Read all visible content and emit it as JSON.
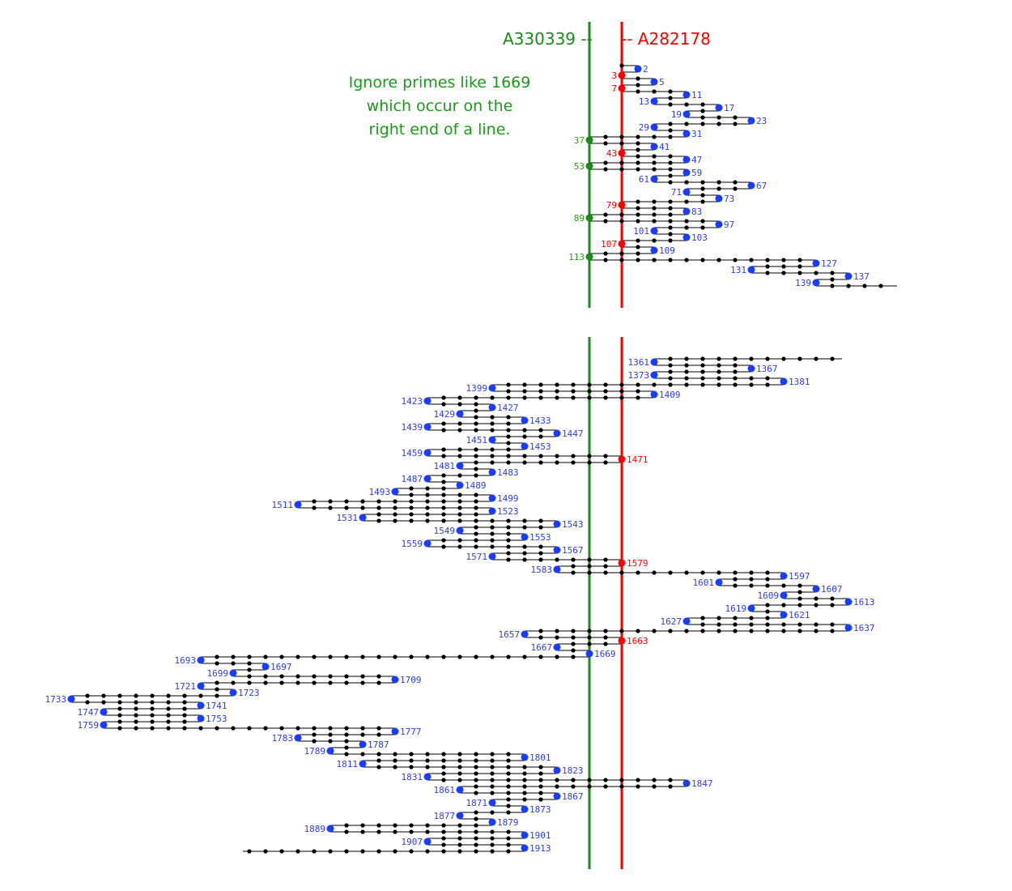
{
  "legend": {
    "green_sequence": "A330339 --",
    "red_sequence": "-- A282178"
  },
  "annotation": [
    "Ignore primes like 1669",
    "which occur on the",
    "right end of a line."
  ],
  "colors": {
    "green": "#1a8c1a",
    "red": "#ff0000",
    "blue": "#1a3cff",
    "label_blue": "#2d3fe0",
    "label_green": "#2e9a1e",
    "black": "#000000"
  },
  "sections": [
    {
      "primes": [
        2,
        3,
        5,
        7,
        11,
        13,
        17,
        19,
        23,
        29,
        31,
        37,
        41,
        43,
        47,
        53,
        59,
        61,
        67,
        71,
        73,
        79,
        83,
        89,
        97,
        101,
        103,
        107,
        109,
        113,
        127,
        131,
        137,
        139
      ]
    },
    {
      "primes": [
        1361,
        1367,
        1373,
        1381,
        1399,
        1409,
        1423,
        1427,
        1429,
        1433,
        1439,
        1447,
        1451,
        1453,
        1459,
        1471,
        1481,
        1483,
        1487,
        1489,
        1493,
        1499,
        1511,
        1523,
        1531,
        1543,
        1549,
        1553,
        1559,
        1567,
        1571,
        1579,
        1583,
        1597,
        1601,
        1607,
        1609,
        1613,
        1619,
        1621,
        1627,
        1637,
        1657,
        1663,
        1667,
        1669,
        1693,
        1697,
        1699,
        1709,
        1721,
        1723,
        1733,
        1741,
        1747,
        1753,
        1759,
        1777,
        1783,
        1787,
        1789,
        1801,
        1811,
        1823,
        1831,
        1847,
        1861,
        1867,
        1871,
        1873,
        1877,
        1879,
        1889,
        1901,
        1907,
        1913
      ]
    }
  ]
}
